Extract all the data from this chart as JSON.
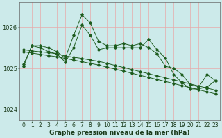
{
  "bg_color": "#cceaea",
  "grid_color": "#e8a8a8",
  "line_color": "#1e5c1e",
  "marker_color": "#1e5c1e",
  "xlabel": "Graphe pression niveau de la mer (hPa)",
  "ylim": [
    1023.75,
    1026.6
  ],
  "xlim": [
    -0.5,
    23.5
  ],
  "yticks": [
    1024,
    1025,
    1026
  ],
  "xticks": [
    0,
    1,
    2,
    3,
    4,
    5,
    6,
    7,
    8,
    9,
    10,
    11,
    12,
    13,
    14,
    15,
    16,
    17,
    18,
    19,
    20,
    21,
    22,
    23
  ],
  "series": [
    {
      "x": [
        0,
        1,
        2,
        3,
        4,
        5,
        6,
        7,
        8,
        9,
        10,
        11,
        12,
        13,
        14,
        15,
        16,
        17,
        18,
        19,
        20,
        21,
        22,
        23
      ],
      "y": [
        1025.1,
        1025.55,
        1025.55,
        1025.5,
        1025.4,
        1025.25,
        1025.8,
        1026.3,
        1026.1,
        1025.65,
        1025.55,
        1025.55,
        1025.6,
        1025.55,
        1025.6,
        1025.5,
        1025.35,
        1025.05,
        1025.0,
        1024.85,
        1024.6,
        1024.55,
        1024.85,
        1024.7
      ]
    },
    {
      "x": [
        0,
        1,
        2,
        3,
        4,
        5,
        6,
        7,
        8,
        9,
        10,
        11,
        12,
        13,
        14,
        15,
        16,
        17,
        18,
        19,
        20,
        21,
        22,
        23
      ],
      "y": [
        1025.05,
        1025.55,
        1025.5,
        1025.4,
        1025.35,
        1025.15,
        1025.5,
        1026.05,
        1025.8,
        1025.45,
        1025.5,
        1025.5,
        1025.5,
        1025.5,
        1025.5,
        1025.7,
        1025.45,
        1025.25,
        1024.85,
        1024.65,
        1024.5,
        1024.5,
        1024.55,
        1024.7
      ]
    },
    {
      "x": [
        0,
        1,
        2,
        3,
        4,
        5,
        6,
        7,
        8,
        9,
        10,
        11,
        12,
        13,
        14,
        15,
        16,
        17,
        18,
        19,
        20,
        21,
        22,
        23
      ],
      "y": [
        1025.45,
        1025.42,
        1025.4,
        1025.38,
        1025.35,
        1025.3,
        1025.27,
        1025.24,
        1025.2,
        1025.17,
        1025.12,
        1025.07,
        1025.02,
        1024.97,
        1024.92,
        1024.87,
        1024.82,
        1024.77,
        1024.72,
        1024.67,
        1024.62,
        1024.57,
        1024.52,
        1024.47
      ]
    },
    {
      "x": [
        0,
        1,
        2,
        3,
        4,
        5,
        6,
        7,
        8,
        9,
        10,
        11,
        12,
        13,
        14,
        15,
        16,
        17,
        18,
        19,
        20,
        21,
        22,
        23
      ],
      "y": [
        1025.4,
        1025.37,
        1025.34,
        1025.31,
        1025.28,
        1025.24,
        1025.2,
        1025.16,
        1025.12,
        1025.08,
        1025.03,
        1024.98,
        1024.93,
        1024.88,
        1024.83,
        1024.78,
        1024.73,
        1024.68,
        1024.63,
        1024.58,
        1024.53,
        1024.48,
        1024.43,
        1024.38
      ]
    }
  ],
  "font_color": "#1a3a1a",
  "xlabel_fontsize": 6.5,
  "tick_fontsize": 5.5,
  "figwidth": 3.2,
  "figheight": 2.0,
  "dpi": 100
}
